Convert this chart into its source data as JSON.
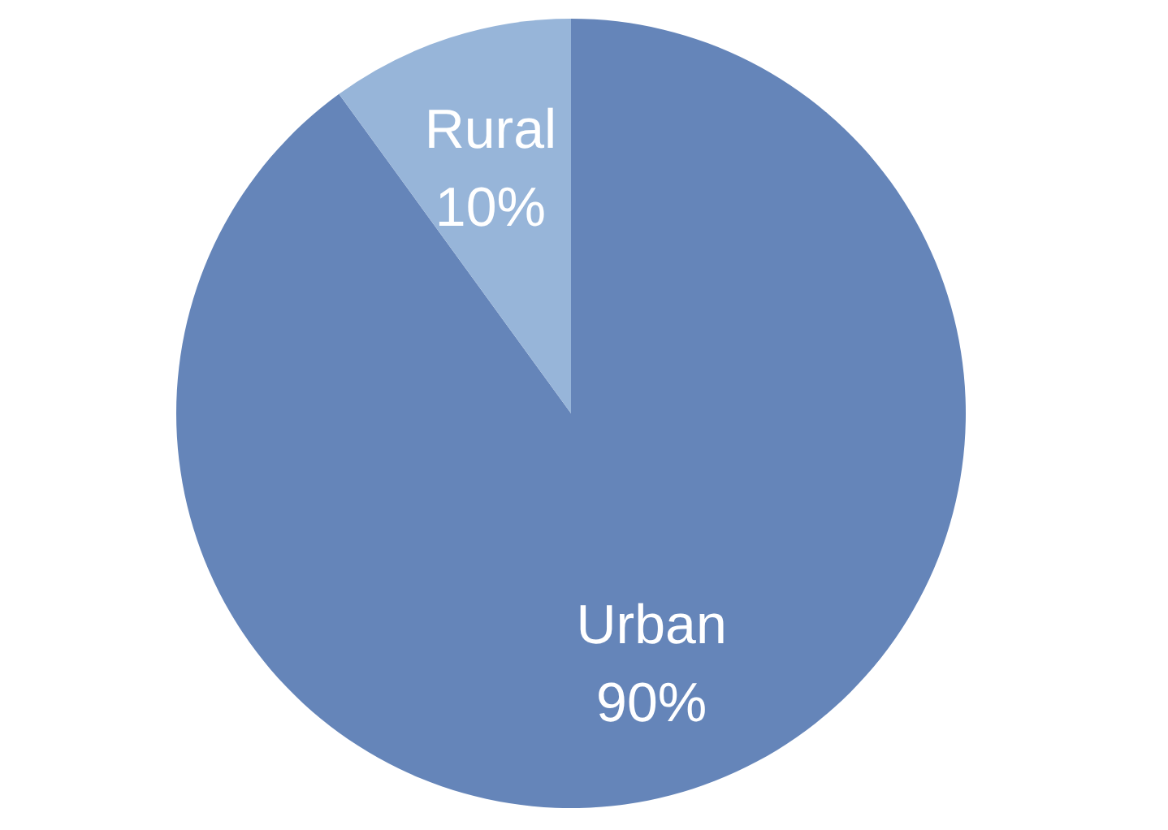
{
  "chart_data": {
    "type": "pie",
    "categories": [
      "Urban",
      "Rural"
    ],
    "values": [
      90,
      10
    ],
    "colors": [
      "#6585b9",
      "#97b5d9"
    ],
    "value_labels": [
      "90%",
      "10%"
    ]
  }
}
